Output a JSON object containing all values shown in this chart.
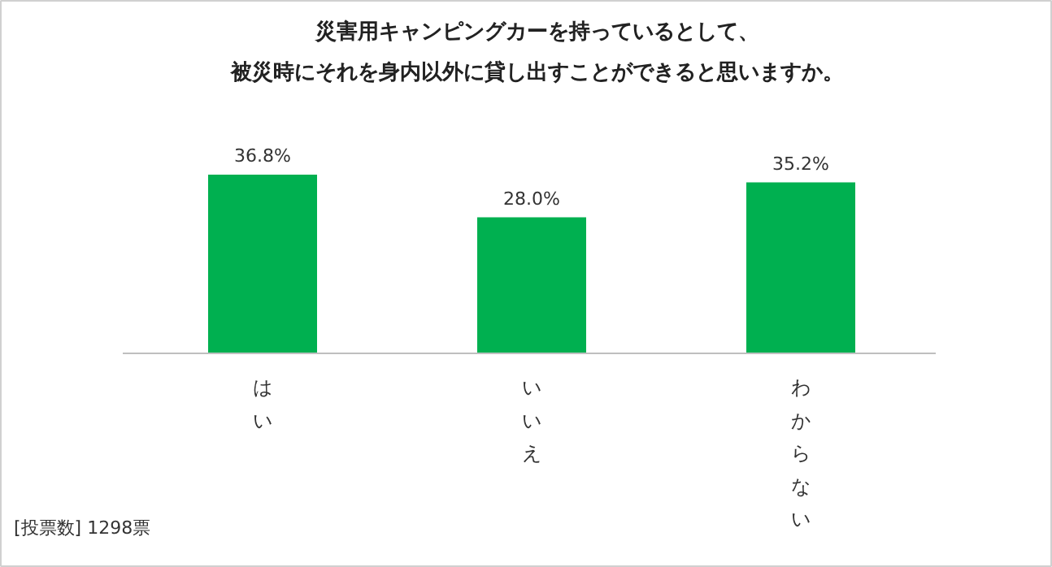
{
  "chart_data": {
    "type": "bar",
    "title": "災害用キャンピングカーを持っているとして、被災時にそれを身内以外に貸し出すことができると思いますか。",
    "categories": [
      "はい",
      "いいえ",
      "わからない"
    ],
    "values": [
      36.8,
      28.0,
      35.2
    ],
    "color": "#00b050",
    "value_labels": [
      "36.8%",
      "28.0%",
      "35.2%"
    ],
    "annotations": [
      "[投票数] 1298票"
    ]
  }
}
